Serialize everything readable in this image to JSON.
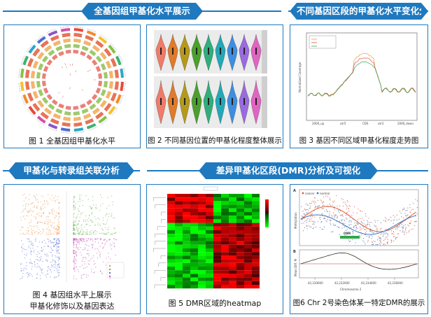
{
  "headers": {
    "genome_wide": "全基因组甲基化水平展示",
    "region_trend": "不同基因区段的甲基化水平变化分析",
    "correlation": "甲基化与转录组关联分析",
    "dmr": "差异甲基化区段(DMR)分析及可视化"
  },
  "captions": {
    "fig1": "图 1 全基因组甲基化水平",
    "fig2": "图 2 不同基因位置的甲基化程度整体展示",
    "fig3": "图 3 基因不同区域甲基化程度走势图",
    "fig4_line1": "图 4 基因组水平上展示",
    "fig4_line2": "甲基化修饰以及基因表达",
    "fig5": "图 5 DMR区域的heatmap",
    "fig6": "图6 Chr 2号染色体某一特定DMR的展示"
  },
  "fig3": {
    "ylabel": "Normalized Coverage",
    "xticks": [
      "2000_up",
      "utr5",
      "CDS",
      "utr3",
      "2000_down"
    ]
  },
  "fig6": {
    "legend": [
      "cancer",
      "normal"
    ],
    "ylabel_top": "Methylation",
    "ylabel_bottom": "Mean Diff. M",
    "dmr_label": "DMR",
    "xlabel": "Chromosome 2",
    "xticks": [
      "42,230000",
      "42,232000",
      "42,234000",
      "42,236000"
    ]
  },
  "colors": {
    "accent": "#1f79bf",
    "cancer": "#e05a3a",
    "normal": "#3a78c2"
  }
}
